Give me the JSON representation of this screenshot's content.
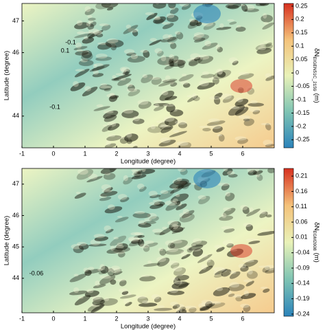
{
  "chart_data": [
    {
      "type": "heatmap",
      "xlabel": "Longitude (degree)",
      "ylabel": "Latitude (degree)",
      "xlim": [
        -1,
        7
      ],
      "ylim": [
        43,
        47.55
      ],
      "xticks": [
        -1,
        0,
        1,
        2,
        3,
        4,
        5,
        6
      ],
      "yticks": [
        44,
        46,
        47
      ],
      "colormap": [
        "#2b83ba",
        "#7fc4b3",
        "#e9f2b8",
        "#f4c27a",
        "#d7301f"
      ],
      "clim": [
        -0.28,
        0.26
      ],
      "cticks": [
        0.25,
        0.2,
        0.15,
        0.1,
        0.05,
        0,
        -0.05,
        -0.1,
        -0.15,
        -0.2,
        -0.25
      ],
      "colorbar_label": "δN",
      "colorbar_label_subscript": "EIGEN51C_2159",
      "colorbar_unit": "(m)",
      "annotations": [
        "-0.1",
        "0.1",
        "-0.1"
      ]
    },
    {
      "type": "heatmap",
      "xlabel": "Longitude (degree)",
      "ylabel": "Latitude (degree)",
      "xlim": [
        -1,
        7
      ],
      "ylim": [
        42.9,
        47.5
      ],
      "xticks": [
        -1,
        0,
        1,
        2,
        3,
        4,
        5,
        6
      ],
      "yticks": [
        44,
        45,
        46,
        47
      ],
      "colormap": [
        "#2b83ba",
        "#7fc4b3",
        "#e9f2b8",
        "#f4c27a",
        "#d7301f"
      ],
      "clim": [
        -0.247,
        0.235
      ],
      "cticks": [
        0.21,
        0.16,
        0.11,
        0.06,
        0.01,
        -0.04,
        -0.09,
        -0.14,
        -0.19,
        -0.24
      ],
      "colorbar_label": "δN",
      "colorbar_label_subscript": "EGM2008",
      "colorbar_unit": "(m)",
      "annotations": [
        "-0.06"
      ]
    }
  ]
}
